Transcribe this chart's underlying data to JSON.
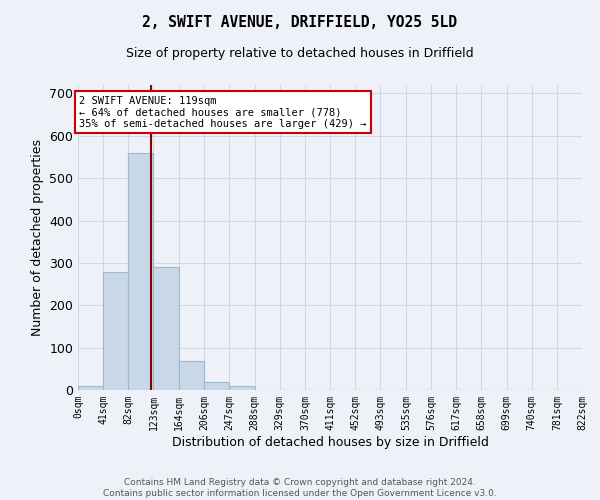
{
  "title_line1": "2, SWIFT AVENUE, DRIFFIELD, YO25 5LD",
  "title_line2": "Size of property relative to detached houses in Driffield",
  "xlabel": "Distribution of detached houses by size in Driffield",
  "ylabel": "Number of detached properties",
  "footer": "Contains HM Land Registry data © Crown copyright and database right 2024.\nContains public sector information licensed under the Open Government Licence v3.0.",
  "bin_edges": [
    0,
    41,
    82,
    123,
    164,
    206,
    247,
    288,
    329,
    370,
    411,
    452,
    493,
    535,
    576,
    617,
    658,
    699,
    740,
    781,
    822
  ],
  "bar_heights": [
    10,
    278,
    560,
    290,
    68,
    18,
    10,
    0,
    0,
    0,
    0,
    0,
    0,
    0,
    0,
    0,
    0,
    0,
    0,
    0
  ],
  "bar_color": "#c8d8e8",
  "bar_edge_color": "#a0b8cc",
  "grid_color": "#d0d8e8",
  "property_size": 119,
  "property_line_color": "#8b0000",
  "annotation_text": "2 SWIFT AVENUE: 119sqm\n← 64% of detached houses are smaller (778)\n35% of semi-detached houses are larger (429) →",
  "annotation_box_color": "#ffffff",
  "annotation_box_edge": "#cc0000",
  "ylim": [
    0,
    720
  ],
  "yticks": [
    0,
    100,
    200,
    300,
    400,
    500,
    600,
    700
  ],
  "background_color": "#eef2f8"
}
